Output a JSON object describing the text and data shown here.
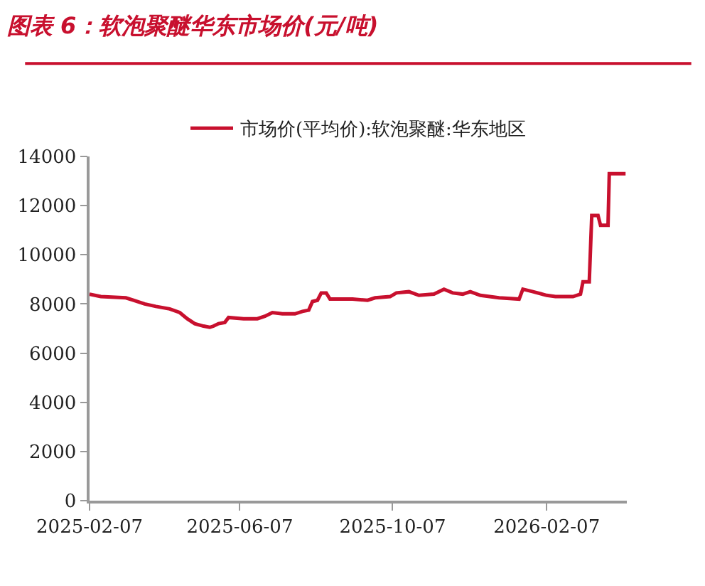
{
  "chart_data": {
    "type": "line",
    "title": "图表 6：软泡聚醚华东市场价(元/吨)",
    "x": [
      "2025-02-07",
      "2025-02-16",
      "2025-03-08",
      "2025-03-14",
      "2025-03-23",
      "2025-04-01",
      "2025-04-12",
      "2025-04-20",
      "2025-04-26",
      "2025-05-02",
      "2025-05-09",
      "2025-05-14",
      "2025-05-17",
      "2025-05-21",
      "2025-05-26",
      "2025-05-29",
      "2025-06-10",
      "2025-06-21",
      "2025-06-27",
      "2025-07-03",
      "2025-07-11",
      "2025-07-21",
      "2025-07-27",
      "2025-08-01",
      "2025-08-04",
      "2025-08-08",
      "2025-08-11",
      "2025-08-15",
      "2025-08-18",
      "2025-08-25",
      "2025-09-05",
      "2025-09-17",
      "2025-09-23",
      "2025-10-05",
      "2025-10-10",
      "2025-10-20",
      "2025-10-28",
      "2025-11-09",
      "2025-11-17",
      "2025-11-24",
      "2025-12-02",
      "2025-12-08",
      "2025-12-16",
      "2025-12-31",
      "2026-01-16",
      "2026-01-19",
      "2026-01-27",
      "2026-02-07",
      "2026-02-14",
      "2026-02-28",
      "2026-03-06",
      "2026-03-08",
      "2026-03-13",
      "2026-03-15",
      "2026-03-20",
      "2026-03-22",
      "2026-03-28",
      "2026-03-29",
      "2026-04-11"
    ],
    "series": [
      {
        "name": "市场价(平均价):软泡聚醚:华东地区",
        "color": "#c8102e",
        "values": [
          8400,
          8300,
          8250,
          8150,
          8000,
          7900,
          7800,
          7650,
          7400,
          7200,
          7100,
          7050,
          7100,
          7200,
          7250,
          7450,
          7400,
          7400,
          7500,
          7650,
          7600,
          7600,
          7700,
          7750,
          8100,
          8150,
          8450,
          8450,
          8200,
          8200,
          8200,
          8150,
          8250,
          8300,
          8450,
          8500,
          8350,
          8400,
          8600,
          8450,
          8400,
          8500,
          8350,
          8250,
          8200,
          8600,
          8500,
          8350,
          8300,
          8300,
          8400,
          8900,
          8900,
          11600,
          11600,
          11200,
          11200,
          13300,
          13300
        ]
      }
    ],
    "xlim": [
      "2025-02-07",
      "2026-04-12"
    ],
    "xticks": [
      {
        "value": "2025-02-07",
        "label": "2025-02-07"
      },
      {
        "value": "2025-06-07",
        "label": "2025-06-07"
      },
      {
        "value": "2025-10-07",
        "label": "2025-10-07"
      },
      {
        "value": "2026-02-07",
        "label": "2026-02-07"
      }
    ],
    "ylim": [
      0,
      14000
    ],
    "yticks": [
      0,
      2000,
      4000,
      6000,
      8000,
      10000,
      12000,
      14000
    ],
    "legend": "top",
    "line_style": "solid",
    "marker": "none"
  }
}
